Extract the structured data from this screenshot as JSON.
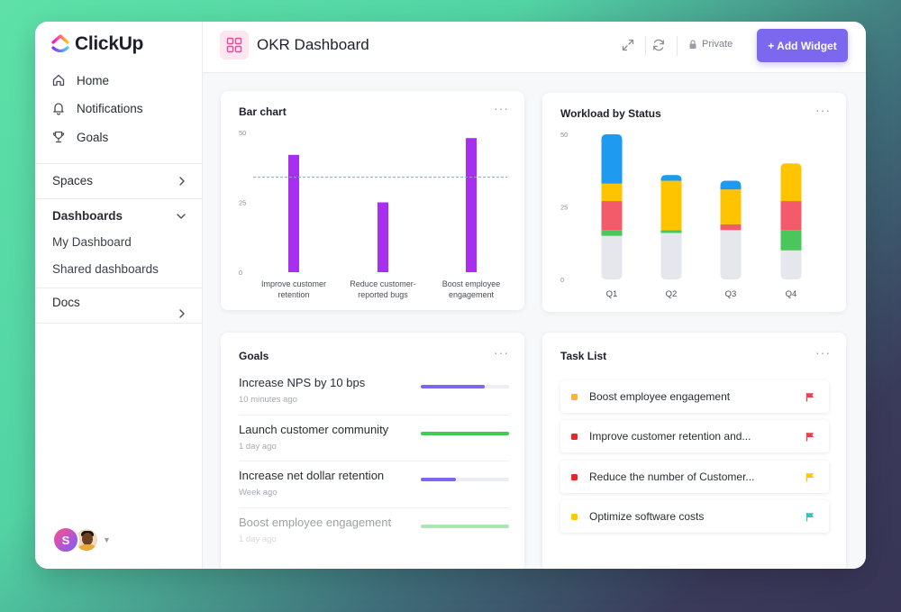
{
  "app": {
    "name": "ClickUp"
  },
  "sidebar": {
    "nav": [
      {
        "label": "Home",
        "icon": "home-icon"
      },
      {
        "label": "Notifications",
        "icon": "bell-icon"
      },
      {
        "label": "Goals",
        "icon": "trophy-icon"
      }
    ],
    "spaces_label": "Spaces",
    "dashboards_label": "Dashboards",
    "dashboards_items": [
      "My Dashboard",
      "Shared dashboards"
    ],
    "docs_label": "Docs",
    "avatar_initial": "S"
  },
  "header": {
    "title": "OKR Dashboard",
    "privacy_label": "Private",
    "add_widget_label": "+ Add Widget"
  },
  "bar_card": {
    "title": "Bar chart",
    "more": "···"
  },
  "workload_card": {
    "title": "Workload by Status",
    "more": "···"
  },
  "goals_card": {
    "title": "Goals",
    "more": "···",
    "items": [
      {
        "name": "Increase NPS by 10 bps",
        "time": "10 minutes ago",
        "progress": 0.72,
        "color": "#7b68ee",
        "faded": false
      },
      {
        "name": "Launch customer community",
        "time": "1 day ago",
        "progress": 1.0,
        "color": "#3ecb55",
        "faded": false
      },
      {
        "name": "Increase net dollar retention",
        "time": "Week ago",
        "progress": 0.4,
        "color": "#7b68ee",
        "faded": false
      },
      {
        "name": "Boost employee engagement",
        "time": "1 day ago",
        "progress": 1.0,
        "color": "#3ecb55",
        "faded": true
      }
    ]
  },
  "tasks_card": {
    "title": "Task List",
    "more": "···",
    "items": [
      {
        "name": "Boost employee engagement",
        "dot": "#f7b731",
        "flag": "#f03e4f"
      },
      {
        "name": "Improve customer retention and...",
        "dot": "#e02a2a",
        "flag": "#f03e4f"
      },
      {
        "name": "Reduce the number of Customer...",
        "dot": "#e02a2a",
        "flag": "#ffc800"
      },
      {
        "name": "Optimize software costs",
        "dot": "#ffc800",
        "flag": "#2ec7c0"
      }
    ]
  },
  "chart_data": [
    {
      "type": "bar",
      "title": "Bar chart",
      "categories": [
        "Improve customer retention",
        "Reduce customer-reported bugs",
        "Boost employee engagement"
      ],
      "category_lines": [
        [
          "Improve customer",
          "retention"
        ],
        [
          "Reduce customer-",
          "reported bugs"
        ],
        [
          "Boost employee",
          "engagement"
        ]
      ],
      "values": [
        42,
        25,
        48
      ],
      "ylim": [
        0,
        50
      ],
      "yticks": [
        0,
        25,
        50
      ],
      "reference_line": 34,
      "color": "#a82ff0",
      "grid": false
    },
    {
      "type": "bar",
      "title": "Workload by Status",
      "stacked": true,
      "categories": [
        "Q1",
        "Q2",
        "Q3",
        "Q4"
      ],
      "ylim": [
        0,
        50
      ],
      "yticks": [
        0,
        25,
        50
      ],
      "series": [
        {
          "color": "#e6e7ec",
          "values": [
            15,
            16,
            17,
            10
          ]
        },
        {
          "color": "#49c75a",
          "values": [
            2,
            1,
            0,
            7
          ]
        },
        {
          "color": "#f35b6a",
          "values": [
            10,
            0,
            2,
            10
          ]
        },
        {
          "color": "#ffc400",
          "values": [
            6,
            17,
            12,
            13
          ]
        },
        {
          "color": "#1e9bf0",
          "values": [
            17,
            2,
            3,
            0
          ]
        }
      ]
    }
  ]
}
